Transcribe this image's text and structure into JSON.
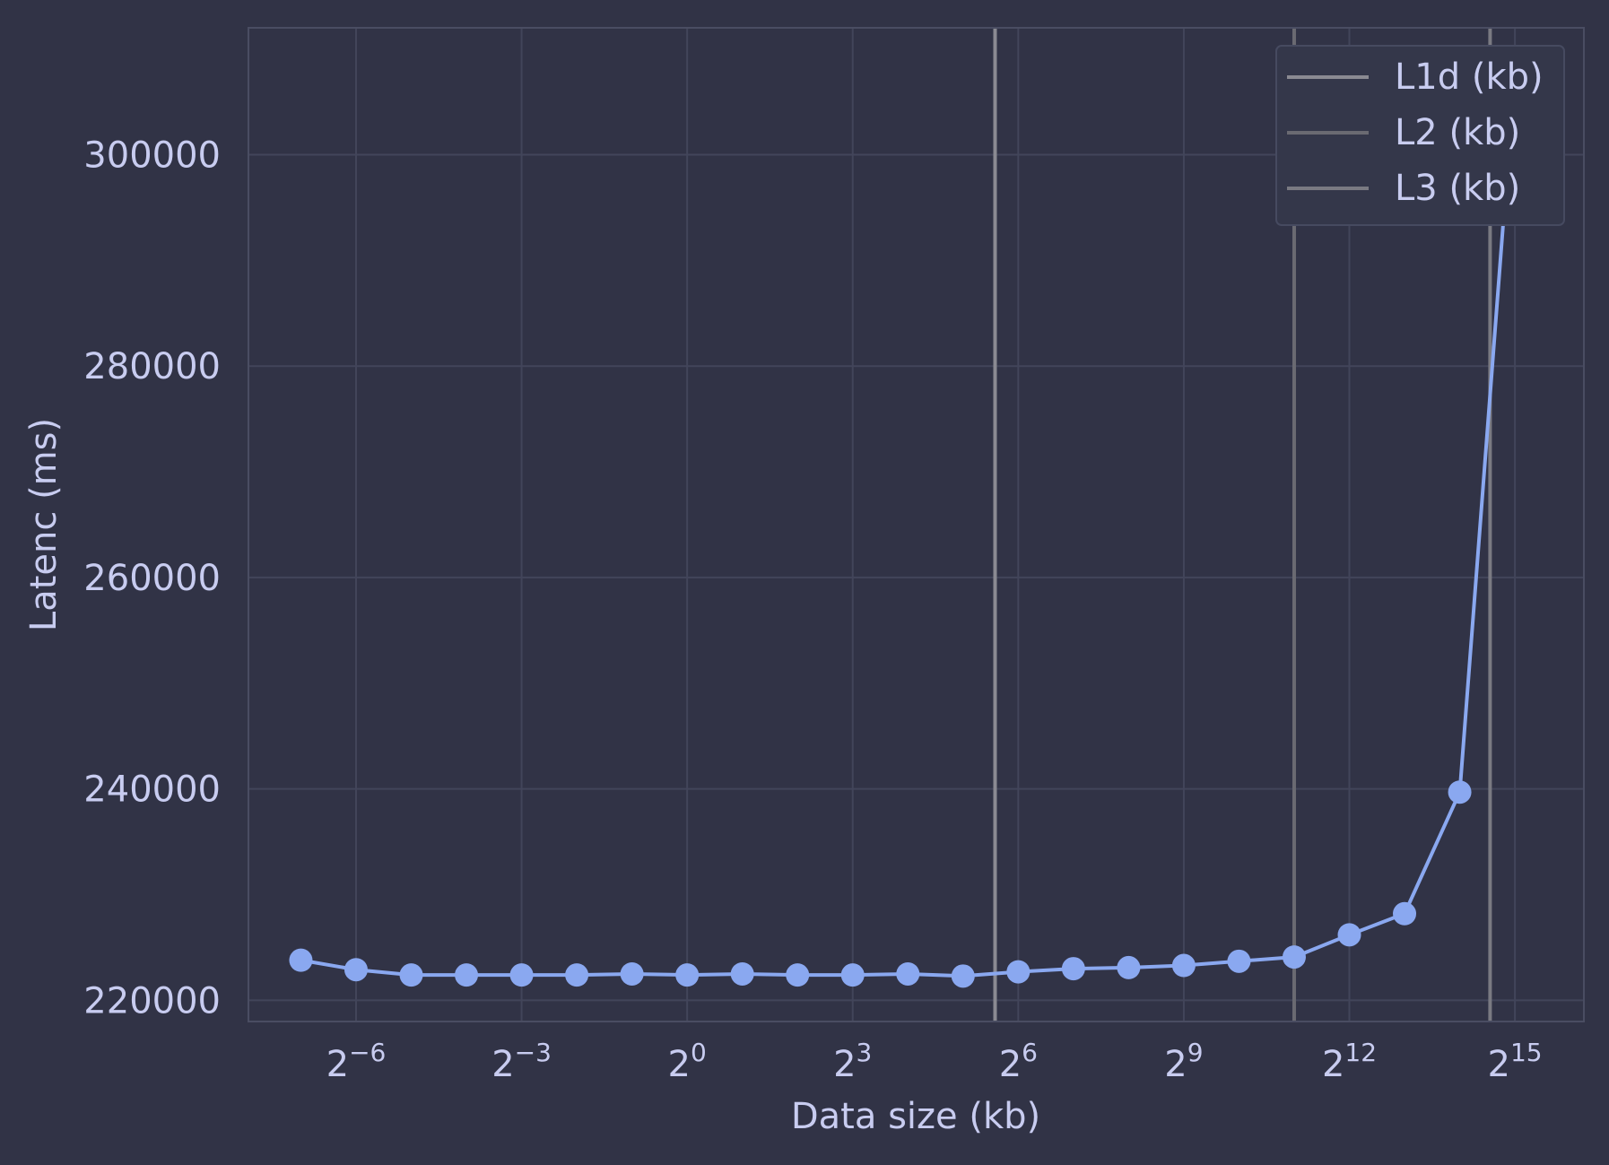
{
  "colors": {
    "background": "#313346",
    "plot_area": "#313346",
    "grid": "#42455a",
    "axis_text": "#c8ccf0",
    "series": "#8aa8f0",
    "vline_l1d": "#8a8a92",
    "vline_l2": "#6a6a72",
    "vline_l3": "#7a7a82"
  },
  "chart_data": {
    "type": "line",
    "title": "",
    "xlabel": "Data size (kb)",
    "ylabel": "Latenc (ms)",
    "xscale": "log2",
    "grid": true,
    "legend_position": "top-right",
    "xlim_log2": [
      -7.95,
      16.25
    ],
    "ylim": [
      218000,
      312000
    ],
    "x_ticks": [
      {
        "base": "2",
        "exp": "−6",
        "log2": -6
      },
      {
        "base": "2",
        "exp": "−3",
        "log2": -3
      },
      {
        "base": "2",
        "exp": "0",
        "log2": 0
      },
      {
        "base": "2",
        "exp": "3",
        "log2": 3
      },
      {
        "base": "2",
        "exp": "6",
        "log2": 6
      },
      {
        "base": "2",
        "exp": "9",
        "log2": 9
      },
      {
        "base": "2",
        "exp": "12",
        "log2": 12
      },
      {
        "base": "2",
        "exp": "15",
        "log2": 15
      }
    ],
    "y_ticks": [
      220000,
      240000,
      260000,
      280000,
      300000
    ],
    "y_tick_labels": [
      "220000",
      "240000",
      "260000",
      "280000",
      "300000"
    ],
    "series": [
      {
        "x_log2": [
          -7,
          -6,
          -5,
          -4,
          -3,
          -2,
          -1,
          0,
          1,
          2,
          3,
          4,
          5,
          6,
          7,
          8,
          9,
          10,
          11,
          12,
          13,
          14,
          15
        ],
        "values": [
          223800,
          222900,
          222400,
          222400,
          222400,
          222400,
          222500,
          222400,
          222500,
          222400,
          222400,
          222500,
          222300,
          222700,
          223000,
          223100,
          223300,
          223700,
          224100,
          226200,
          228200,
          239700,
          308000
        ]
      }
    ],
    "vlines": [
      {
        "label": "L1d (kb)",
        "x_log2": 5.58
      },
      {
        "label": "L2 (kb)",
        "x_log2": 11.0
      },
      {
        "label": "L3 (kb)",
        "x_log2": 14.55
      }
    ]
  }
}
